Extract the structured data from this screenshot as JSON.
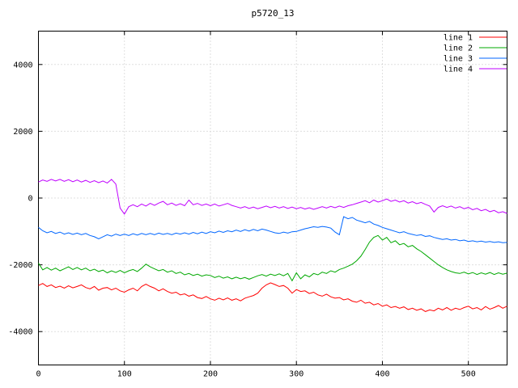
{
  "title": "p5720_13",
  "chart_data": {
    "type": "line",
    "title": "p5720_13",
    "xlim": [
      0,
      545
    ],
    "ylim": [
      -5000,
      5000
    ],
    "x_ticks": [
      0,
      100,
      200,
      300,
      400,
      500
    ],
    "y_ticks": [
      -4000,
      -2000,
      0,
      2000,
      4000
    ],
    "grid": true,
    "legend_position": "top-right",
    "background": "#ffffff",
    "grid_color": "#c0c0c0",
    "border_color": "#000000",
    "text_color": "#000000",
    "x": [
      0,
      5,
      10,
      15,
      20,
      25,
      30,
      35,
      40,
      45,
      50,
      55,
      60,
      65,
      70,
      75,
      80,
      85,
      90,
      95,
      100,
      105,
      110,
      115,
      120,
      125,
      130,
      135,
      140,
      145,
      150,
      155,
      160,
      165,
      170,
      175,
      180,
      185,
      190,
      195,
      200,
      205,
      210,
      215,
      220,
      225,
      230,
      235,
      240,
      245,
      250,
      255,
      260,
      265,
      270,
      275,
      280,
      285,
      290,
      295,
      300,
      305,
      310,
      315,
      320,
      325,
      330,
      335,
      340,
      345,
      350,
      355,
      360,
      365,
      370,
      375,
      380,
      385,
      390,
      395,
      400,
      405,
      410,
      415,
      420,
      425,
      430,
      435,
      440,
      445,
      450,
      455,
      460,
      465,
      470,
      475,
      480,
      485,
      490,
      495,
      500,
      505,
      510,
      515,
      520,
      525,
      530,
      535,
      540,
      545
    ],
    "series": [
      {
        "name": "line 1",
        "color": "#ff0000",
        "values": [
          -2620,
          -2560,
          -2650,
          -2600,
          -2680,
          -2640,
          -2700,
          -2630,
          -2690,
          -2650,
          -2600,
          -2680,
          -2720,
          -2650,
          -2760,
          -2700,
          -2680,
          -2750,
          -2700,
          -2780,
          -2820,
          -2750,
          -2700,
          -2780,
          -2650,
          -2580,
          -2650,
          -2700,
          -2780,
          -2720,
          -2800,
          -2850,
          -2820,
          -2900,
          -2870,
          -2940,
          -2900,
          -2980,
          -3010,
          -2950,
          -3020,
          -3060,
          -3000,
          -3050,
          -2990,
          -3060,
          -3020,
          -3080,
          -3000,
          -2960,
          -2920,
          -2850,
          -2700,
          -2600,
          -2540,
          -2590,
          -2650,
          -2620,
          -2700,
          -2850,
          -2740,
          -2800,
          -2780,
          -2860,
          -2820,
          -2900,
          -2940,
          -2880,
          -2960,
          -3000,
          -2980,
          -3050,
          -3020,
          -3090,
          -3120,
          -3060,
          -3150,
          -3120,
          -3200,
          -3160,
          -3240,
          -3200,
          -3280,
          -3250,
          -3300,
          -3260,
          -3340,
          -3300,
          -3360,
          -3320,
          -3400,
          -3350,
          -3380,
          -3300,
          -3350,
          -3280,
          -3360,
          -3300,
          -3340,
          -3280,
          -3240,
          -3320,
          -3280,
          -3350,
          -3250,
          -3330,
          -3280,
          -3220,
          -3300,
          -3240
        ]
      },
      {
        "name": "line 2",
        "color": "#00a800",
        "values": [
          -1950,
          -2150,
          -2080,
          -2160,
          -2100,
          -2180,
          -2120,
          -2060,
          -2140,
          -2080,
          -2150,
          -2100,
          -2180,
          -2130,
          -2200,
          -2160,
          -2240,
          -2180,
          -2230,
          -2170,
          -2240,
          -2180,
          -2140,
          -2200,
          -2100,
          -1980,
          -2060,
          -2120,
          -2180,
          -2140,
          -2220,
          -2180,
          -2260,
          -2220,
          -2300,
          -2260,
          -2320,
          -2280,
          -2340,
          -2300,
          -2320,
          -2380,
          -2340,
          -2400,
          -2360,
          -2420,
          -2370,
          -2420,
          -2380,
          -2430,
          -2380,
          -2330,
          -2290,
          -2340,
          -2280,
          -2320,
          -2270,
          -2330,
          -2260,
          -2480,
          -2240,
          -2420,
          -2300,
          -2360,
          -2260,
          -2300,
          -2220,
          -2260,
          -2180,
          -2220,
          -2140,
          -2100,
          -2040,
          -1980,
          -1880,
          -1740,
          -1540,
          -1320,
          -1180,
          -1120,
          -1260,
          -1180,
          -1340,
          -1280,
          -1400,
          -1360,
          -1460,
          -1420,
          -1520,
          -1600,
          -1700,
          -1800,
          -1900,
          -2000,
          -2080,
          -2150,
          -2200,
          -2240,
          -2260,
          -2220,
          -2270,
          -2230,
          -2290,
          -2240,
          -2280,
          -2230,
          -2290,
          -2240,
          -2280,
          -2250
        ]
      },
      {
        "name": "line 3",
        "color": "#0066ff",
        "values": [
          -880,
          -980,
          -1040,
          -1000,
          -1060,
          -1020,
          -1080,
          -1040,
          -1090,
          -1050,
          -1100,
          -1060,
          -1120,
          -1160,
          -1220,
          -1160,
          -1100,
          -1140,
          -1080,
          -1120,
          -1080,
          -1120,
          -1070,
          -1110,
          -1060,
          -1100,
          -1060,
          -1100,
          -1050,
          -1090,
          -1060,
          -1100,
          -1050,
          -1080,
          -1040,
          -1080,
          -1030,
          -1070,
          -1020,
          -1060,
          -1010,
          -1040,
          -990,
          -1030,
          -980,
          -1010,
          -960,
          -1000,
          -950,
          -990,
          -940,
          -980,
          -930,
          -960,
          -1000,
          -1040,
          -1060,
          -1020,
          -1050,
          -1010,
          -1000,
          -960,
          -920,
          -890,
          -860,
          -880,
          -850,
          -870,
          -900,
          -1020,
          -1100,
          -560,
          -620,
          -580,
          -660,
          -700,
          -740,
          -700,
          -780,
          -820,
          -880,
          -920,
          -960,
          -1000,
          -1040,
          -1010,
          -1060,
          -1090,
          -1120,
          -1100,
          -1150,
          -1130,
          -1180,
          -1210,
          -1240,
          -1220,
          -1260,
          -1240,
          -1280,
          -1260,
          -1300,
          -1280,
          -1310,
          -1290,
          -1320,
          -1300,
          -1330,
          -1310,
          -1340,
          -1330
        ]
      },
      {
        "name": "line 4",
        "color": "#bf00ff",
        "values": [
          480,
          540,
          500,
          560,
          510,
          560,
          500,
          550,
          490,
          540,
          480,
          530,
          470,
          520,
          460,
          510,
          450,
          560,
          420,
          -300,
          -480,
          -260,
          -200,
          -260,
          -180,
          -240,
          -160,
          -220,
          -150,
          -100,
          -200,
          -150,
          -220,
          -170,
          -230,
          -60,
          -200,
          -160,
          -220,
          -180,
          -230,
          -180,
          -240,
          -200,
          -160,
          -220,
          -260,
          -300,
          -260,
          -310,
          -270,
          -320,
          -280,
          -240,
          -290,
          -250,
          -300,
          -260,
          -310,
          -270,
          -320,
          -280,
          -330,
          -290,
          -340,
          -300,
          -260,
          -300,
          -250,
          -290,
          -240,
          -280,
          -230,
          -200,
          -160,
          -120,
          -80,
          -140,
          -60,
          -120,
          -80,
          -30,
          -100,
          -60,
          -120,
          -80,
          -150,
          -110,
          -170,
          -130,
          -190,
          -240,
          -420,
          -280,
          -230,
          -280,
          -240,
          -300,
          -260,
          -320,
          -280,
          -350,
          -310,
          -380,
          -340,
          -410,
          -370,
          -440,
          -410,
          -460
        ]
      }
    ]
  }
}
